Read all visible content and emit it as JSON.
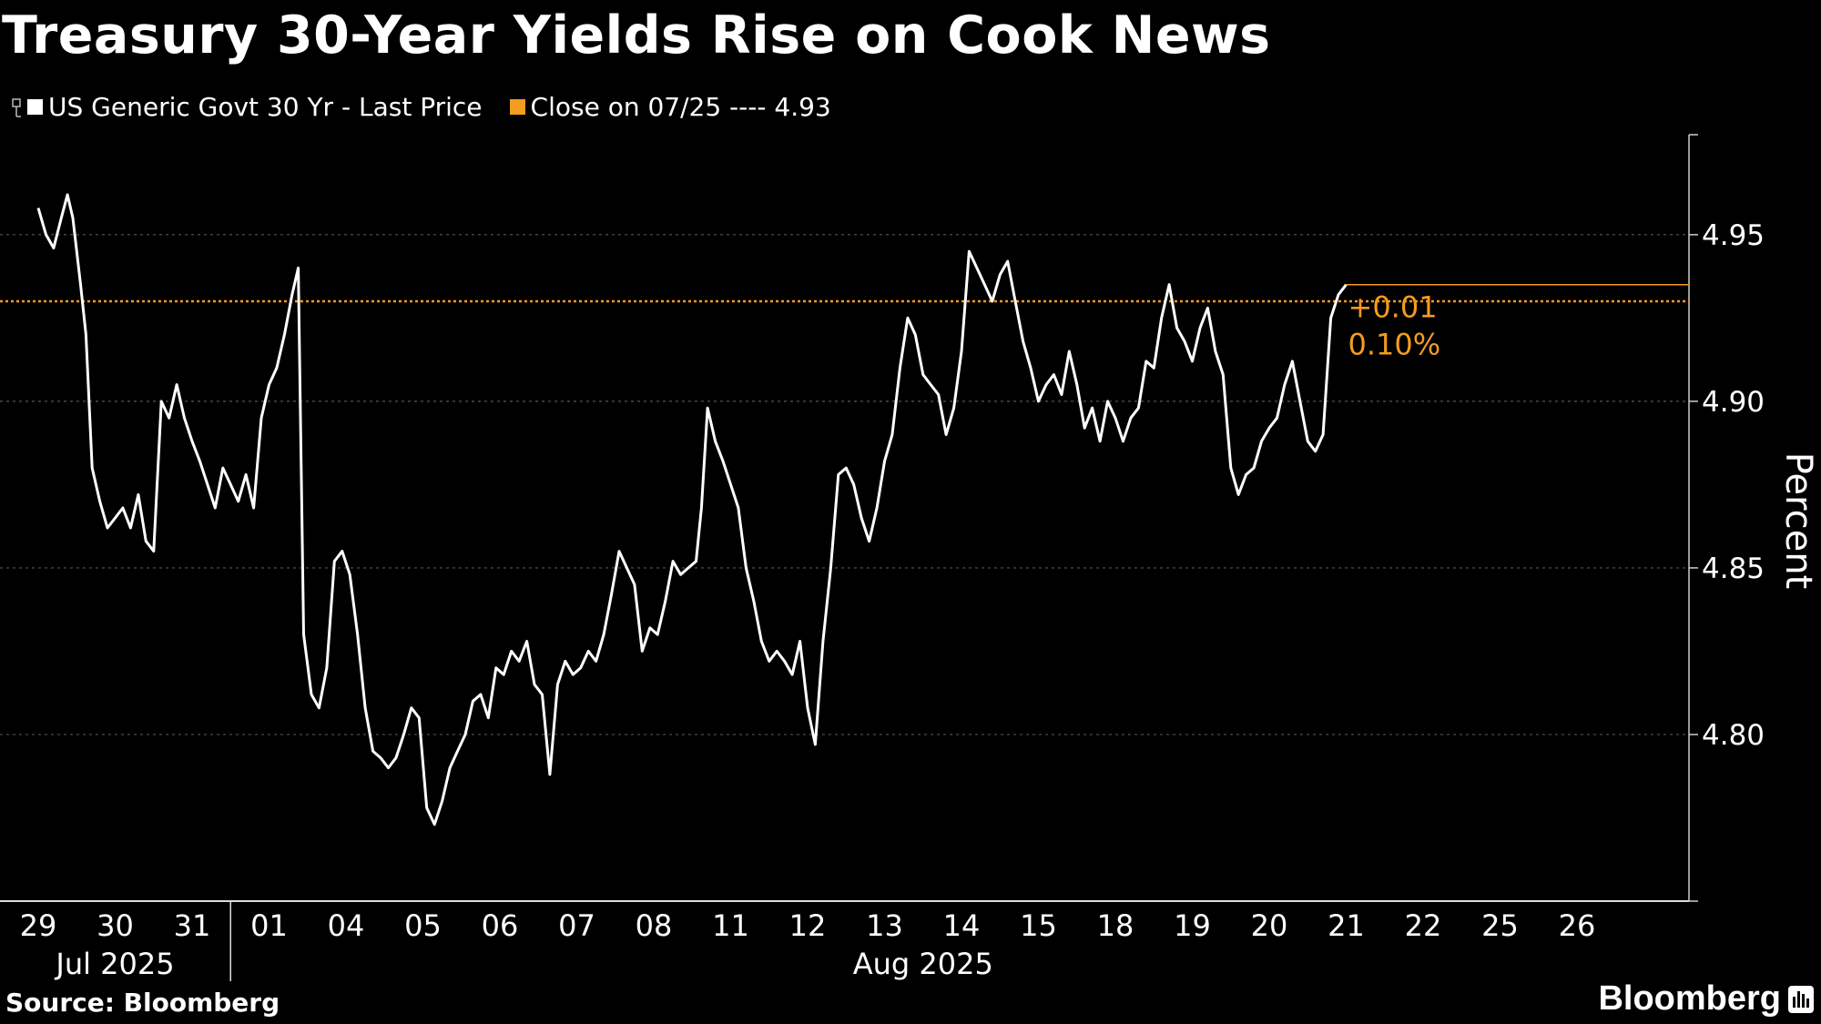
{
  "title": "Treasury 30-Year Yields Rise on Cook News",
  "legend": [
    {
      "label": "US Generic Govt 30 Yr - Last Price",
      "color": "#ffffff"
    },
    {
      "label": "Close on 07/25 ---- 4.93",
      "color": "#f39c1f"
    }
  ],
  "source": "Source: Bloomberg",
  "brand": "Bloomberg",
  "chart_data": {
    "type": "line",
    "ylabel": "Percent",
    "ylim": [
      4.75,
      4.98
    ],
    "yticks": [
      "4.80",
      "4.85",
      "4.90",
      "4.95"
    ],
    "grid": true,
    "x_days": [
      "29",
      "30",
      "31",
      "01",
      "04",
      "05",
      "06",
      "07",
      "08",
      "11",
      "12",
      "13",
      "14",
      "15",
      "18",
      "19",
      "20",
      "21",
      "22",
      "25",
      "26"
    ],
    "x_groups": [
      {
        "label": "Jul 2025"
      },
      {
        "label": "Aug 2025"
      }
    ],
    "reference_line": {
      "label": "Close on 07/25",
      "value": 4.93,
      "color": "#f39c1f"
    },
    "change_labels": [
      "+0.01",
      "0.10%"
    ],
    "series": [
      {
        "name": "US Generic Govt 30 Yr - Last Price",
        "color": "#ffffff",
        "points": [
          [
            0,
            4.958
          ],
          [
            0.1,
            4.95
          ],
          [
            0.2,
            4.946
          ],
          [
            0.3,
            4.955
          ],
          [
            0.38,
            4.962
          ],
          [
            0.45,
            4.955
          ],
          [
            0.55,
            4.935
          ],
          [
            0.62,
            4.92
          ],
          [
            0.7,
            4.88
          ],
          [
            0.8,
            4.87
          ],
          [
            0.9,
            4.862
          ],
          [
            1.0,
            4.865
          ],
          [
            1.1,
            4.868
          ],
          [
            1.2,
            4.862
          ],
          [
            1.3,
            4.872
          ],
          [
            1.4,
            4.858
          ],
          [
            1.5,
            4.855
          ],
          [
            1.6,
            4.9
          ],
          [
            1.7,
            4.895
          ],
          [
            1.8,
            4.905
          ],
          [
            1.9,
            4.895
          ],
          [
            2.0,
            4.888
          ],
          [
            2.1,
            4.882
          ],
          [
            2.2,
            4.875
          ],
          [
            2.3,
            4.868
          ],
          [
            2.4,
            4.88
          ],
          [
            2.5,
            4.875
          ],
          [
            2.6,
            4.87
          ],
          [
            2.7,
            4.878
          ],
          [
            2.8,
            4.868
          ],
          [
            2.9,
            4.895
          ],
          [
            3.0,
            4.905
          ],
          [
            3.1,
            4.91
          ],
          [
            3.2,
            4.92
          ],
          [
            3.3,
            4.932
          ],
          [
            3.38,
            4.94
          ],
          [
            3.45,
            4.83
          ],
          [
            3.55,
            4.812
          ],
          [
            3.65,
            4.808
          ],
          [
            3.75,
            4.82
          ],
          [
            3.85,
            4.852
          ],
          [
            3.95,
            4.855
          ],
          [
            4.05,
            4.848
          ],
          [
            4.15,
            4.83
          ],
          [
            4.25,
            4.808
          ],
          [
            4.35,
            4.795
          ],
          [
            4.45,
            4.793
          ],
          [
            4.55,
            4.79
          ],
          [
            4.65,
            4.793
          ],
          [
            4.75,
            4.8
          ],
          [
            4.85,
            4.808
          ],
          [
            4.95,
            4.805
          ],
          [
            5.05,
            4.778
          ],
          [
            5.15,
            4.773
          ],
          [
            5.25,
            4.78
          ],
          [
            5.35,
            4.79
          ],
          [
            5.45,
            4.795
          ],
          [
            5.55,
            4.8
          ],
          [
            5.65,
            4.81
          ],
          [
            5.75,
            4.812
          ],
          [
            5.85,
            4.805
          ],
          [
            5.95,
            4.82
          ],
          [
            6.05,
            4.818
          ],
          [
            6.15,
            4.825
          ],
          [
            6.25,
            4.822
          ],
          [
            6.35,
            4.828
          ],
          [
            6.45,
            4.815
          ],
          [
            6.55,
            4.812
          ],
          [
            6.65,
            4.788
          ],
          [
            6.75,
            4.815
          ],
          [
            6.85,
            4.822
          ],
          [
            6.95,
            4.818
          ],
          [
            7.05,
            4.82
          ],
          [
            7.15,
            4.825
          ],
          [
            7.25,
            4.822
          ],
          [
            7.35,
            4.83
          ],
          [
            7.45,
            4.842
          ],
          [
            7.55,
            4.855
          ],
          [
            7.65,
            4.85
          ],
          [
            7.75,
            4.845
          ],
          [
            7.85,
            4.825
          ],
          [
            7.95,
            4.832
          ],
          [
            8.05,
            4.83
          ],
          [
            8.15,
            4.84
          ],
          [
            8.25,
            4.852
          ],
          [
            8.35,
            4.848
          ],
          [
            8.45,
            4.85
          ],
          [
            8.55,
            4.852
          ],
          [
            8.62,
            4.868
          ],
          [
            8.7,
            4.898
          ],
          [
            8.8,
            4.888
          ],
          [
            8.9,
            4.882
          ],
          [
            9.0,
            4.875
          ],
          [
            9.1,
            4.868
          ],
          [
            9.2,
            4.85
          ],
          [
            9.3,
            4.84
          ],
          [
            9.4,
            4.828
          ],
          [
            9.5,
            4.822
          ],
          [
            9.6,
            4.825
          ],
          [
            9.7,
            4.822
          ],
          [
            9.8,
            4.818
          ],
          [
            9.9,
            4.828
          ],
          [
            10.0,
            4.808
          ],
          [
            10.1,
            4.797
          ],
          [
            10.2,
            4.828
          ],
          [
            10.3,
            4.85
          ],
          [
            10.4,
            4.878
          ],
          [
            10.5,
            4.88
          ],
          [
            10.6,
            4.875
          ],
          [
            10.7,
            4.865
          ],
          [
            10.8,
            4.858
          ],
          [
            10.9,
            4.868
          ],
          [
            11.0,
            4.882
          ],
          [
            11.1,
            4.89
          ],
          [
            11.2,
            4.91
          ],
          [
            11.3,
            4.925
          ],
          [
            11.4,
            4.92
          ],
          [
            11.5,
            4.908
          ],
          [
            11.6,
            4.905
          ],
          [
            11.7,
            4.902
          ],
          [
            11.8,
            4.89
          ],
          [
            11.9,
            4.898
          ],
          [
            12.0,
            4.915
          ],
          [
            12.1,
            4.945
          ],
          [
            12.2,
            4.94
          ],
          [
            12.3,
            4.935
          ],
          [
            12.4,
            4.93
          ],
          [
            12.5,
            4.938
          ],
          [
            12.6,
            4.942
          ],
          [
            12.7,
            4.93
          ],
          [
            12.8,
            4.918
          ],
          [
            12.9,
            4.91
          ],
          [
            13.0,
            4.9
          ],
          [
            13.1,
            4.905
          ],
          [
            13.2,
            4.908
          ],
          [
            13.3,
            4.902
          ],
          [
            13.4,
            4.915
          ],
          [
            13.5,
            4.905
          ],
          [
            13.6,
            4.892
          ],
          [
            13.7,
            4.898
          ],
          [
            13.8,
            4.888
          ],
          [
            13.9,
            4.9
          ],
          [
            14.0,
            4.895
          ],
          [
            14.1,
            4.888
          ],
          [
            14.2,
            4.895
          ],
          [
            14.3,
            4.898
          ],
          [
            14.4,
            4.912
          ],
          [
            14.5,
            4.91
          ],
          [
            14.6,
            4.925
          ],
          [
            14.7,
            4.935
          ],
          [
            14.8,
            4.922
          ],
          [
            14.9,
            4.918
          ],
          [
            15.0,
            4.912
          ],
          [
            15.1,
            4.922
          ],
          [
            15.2,
            4.928
          ],
          [
            15.3,
            4.915
          ],
          [
            15.4,
            4.908
          ],
          [
            15.5,
            4.88
          ],
          [
            15.6,
            4.872
          ],
          [
            15.7,
            4.878
          ],
          [
            15.8,
            4.88
          ],
          [
            15.9,
            4.888
          ],
          [
            16.0,
            4.892
          ],
          [
            16.1,
            4.895
          ],
          [
            16.2,
            4.905
          ],
          [
            16.3,
            4.912
          ],
          [
            16.4,
            4.9
          ],
          [
            16.5,
            4.888
          ],
          [
            16.6,
            4.885
          ],
          [
            16.7,
            4.89
          ],
          [
            16.8,
            4.925
          ],
          [
            16.9,
            4.932
          ],
          [
            17.0,
            4.935
          ]
        ]
      }
    ]
  }
}
